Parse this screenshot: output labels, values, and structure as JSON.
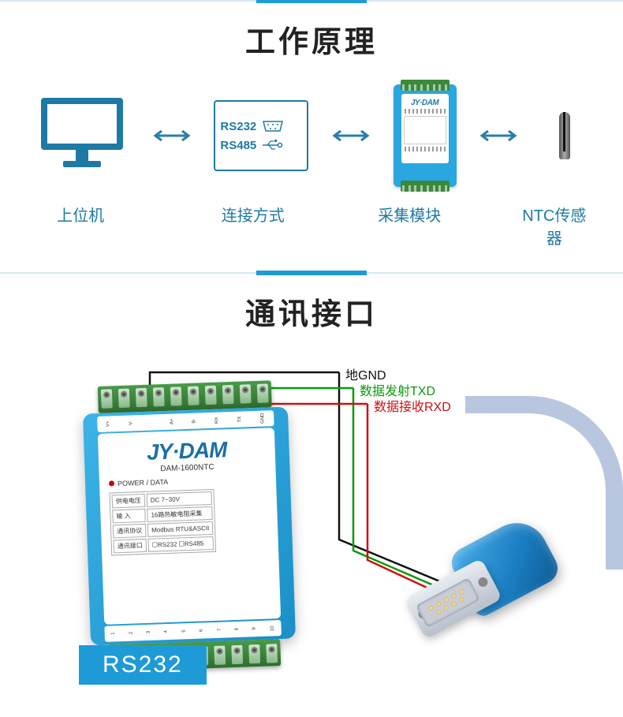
{
  "colors": {
    "accent": "#1e9bd6",
    "line": "#d9e8f0",
    "label": "#1e7aa5",
    "device_body": "#2aa6e0",
    "terminal": "#3a8a3a",
    "wire_gnd": "#111111",
    "wire_txd": "#0a9a0a",
    "wire_rxd": "#d01010"
  },
  "section1": {
    "title": "工作原理",
    "nodes": {
      "host": "上位机",
      "connection": "连接方式",
      "module": "采集模块",
      "sensor": "NTC传感器"
    },
    "conn_types": {
      "rs232": "RS232",
      "rs485": "RS485"
    },
    "device_brand": "JY·DAM"
  },
  "section2": {
    "title": "通讯接口",
    "protocol_badge": "RS232",
    "device": {
      "brand": "JY·DAM",
      "model": "DAM-1600NTC",
      "led_label": "POWER / DATA",
      "spec_rows": [
        [
          "供电电压",
          "DC 7~30V"
        ],
        [
          "输 入",
          "16路热敏电阻采集"
        ],
        [
          "通讯协议",
          "Modbus RTU&ASCII"
        ],
        [
          "通讯接口",
          "☐RS232  ☐RS485"
        ]
      ],
      "top_pins": [
        "V+",
        "V-",
        "",
        "A+",
        "B-",
        "RX",
        "TX",
        "GND"
      ],
      "bot_pins": [
        "1",
        "2",
        "3",
        "4",
        "5",
        "6",
        "7",
        "8",
        "9",
        "10"
      ]
    },
    "wires": {
      "gnd": "地GND",
      "txd": "数据发射TXD",
      "rxd": "数据接收RXD"
    }
  }
}
